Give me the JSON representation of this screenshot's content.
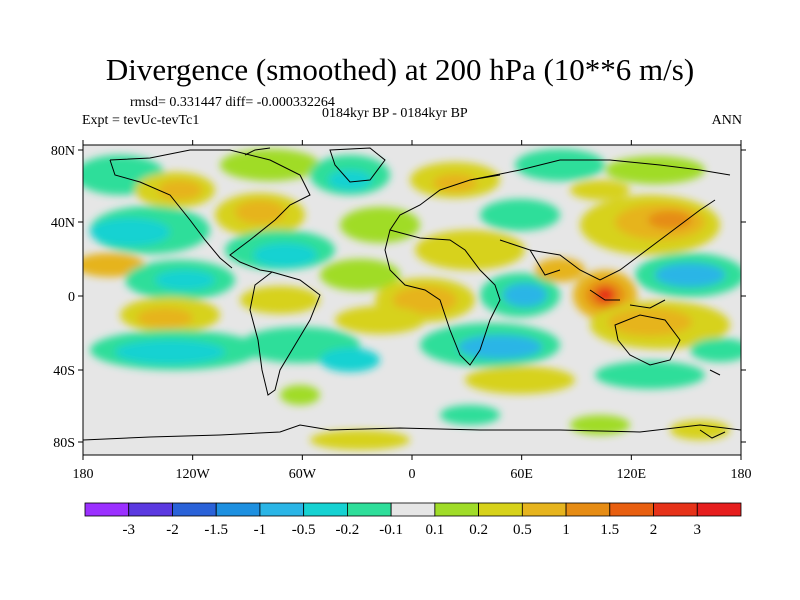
{
  "title": "Divergence (smoothed) at 200 hPa (10**6 m/s)",
  "stats": "rmsd= 0.331447 diff= -0.000332264",
  "experiment": "Expt = tevUc-tevTc1",
  "period": "0184kyr BP - 0184kyr BP",
  "season": "ANN",
  "lat_ticks": [
    "80N",
    "40N",
    "0",
    "40S",
    "80S"
  ],
  "lon_ticks": [
    "180",
    "120W",
    "60W",
    "0",
    "60E",
    "120E",
    "180"
  ],
  "colorbar": {
    "labels": [
      "-3",
      "-2",
      "-1.5",
      "-1",
      "-0.5",
      "-0.2",
      "-0.1",
      "0.1",
      "0.2",
      "0.5",
      "1",
      "1.5",
      "2",
      "3"
    ],
    "colors": [
      "#9b30ff",
      "#5b39e0",
      "#2a62d8",
      "#1e90e0",
      "#2ab5e6",
      "#16d2d2",
      "#2ede9a",
      "#e6e6e6",
      "#a0dc28",
      "#d7d21a",
      "#e6b41e",
      "#e68c14",
      "#e85f10",
      "#e63219",
      "#e61e1e"
    ]
  }
}
